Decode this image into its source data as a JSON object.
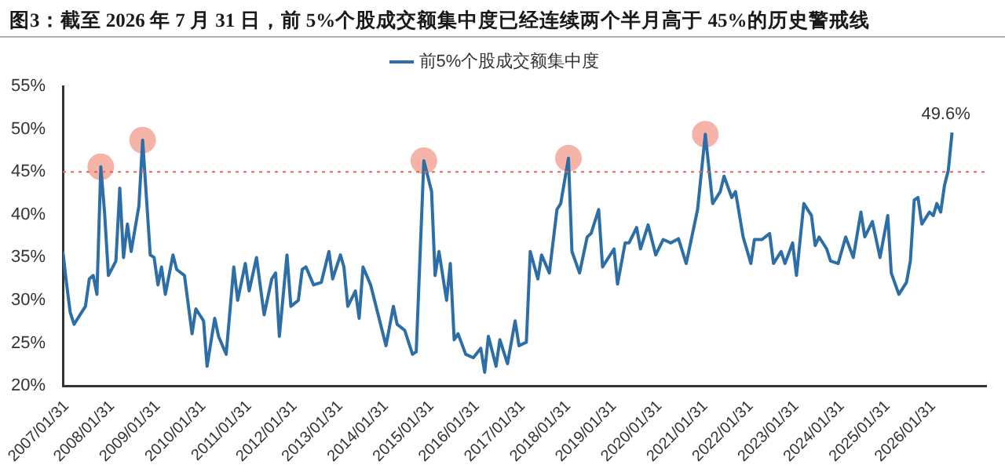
{
  "chart_data": {
    "type": "line",
    "title": "图3：截至 2026 年 7 月 31 日，前 5%个股成交额集中度已经连续两个半月高于 45%的历史警戒线",
    "xlim": [
      "2007-01-01",
      "2027-03-31"
    ],
    "xticks": [
      {
        "value": "2007-01-31",
        "label": "2007/01/31"
      },
      {
        "value": "2008-01-31",
        "label": "2008/01/31"
      },
      {
        "value": "2009-01-31",
        "label": "2009/01/31"
      },
      {
        "value": "2010-01-31",
        "label": "2010/01/31"
      },
      {
        "value": "2011-01-31",
        "label": "2011/01/31"
      },
      {
        "value": "2012-01-31",
        "label": "2012/01/31"
      },
      {
        "value": "2013-01-31",
        "label": "2013/01/31"
      },
      {
        "value": "2014-01-31",
        "label": "2014/01/31"
      },
      {
        "value": "2015-01-31",
        "label": "2015/01/31"
      },
      {
        "value": "2016-01-31",
        "label": "2016/01/31"
      },
      {
        "value": "2017-01-31",
        "label": "2017/01/31"
      },
      {
        "value": "2018-01-31",
        "label": "2018/01/31"
      },
      {
        "value": "2019-01-31",
        "label": "2019/01/31"
      },
      {
        "value": "2020-01-31",
        "label": "2020/01/31"
      },
      {
        "value": "2021-01-31",
        "label": "2021/01/31"
      },
      {
        "value": "2022-01-31",
        "label": "2022/01/31"
      },
      {
        "value": "2023-01-31",
        "label": "2023/01/31"
      },
      {
        "value": "2024-01-31",
        "label": "2024/01/31"
      },
      {
        "value": "2025-01-31",
        "label": "2025/01/31"
      },
      {
        "value": "2026-01-31",
        "label": "2026/01/31"
      }
    ],
    "ylim": [
      20,
      55
    ],
    "yticks": [
      {
        "value": 20,
        "label": "20%"
      },
      {
        "value": 25,
        "label": "25%"
      },
      {
        "value": 30,
        "label": "30%"
      },
      {
        "value": 35,
        "label": "35%"
      },
      {
        "value": 40,
        "label": "40%"
      },
      {
        "value": 45,
        "label": "45%"
      },
      {
        "value": 50,
        "label": "50%"
      },
      {
        "value": 55,
        "label": "55%"
      }
    ],
    "grid": false,
    "legend": "top",
    "marker": "none",
    "line_style": "solid",
    "ref_lines": [
      {
        "axis": "y",
        "value": 45,
        "color": "#e8615a",
        "line_style": "dotted"
      }
    ],
    "annotations": [
      {
        "text": "49.6%",
        "x": "2026-07",
        "y": 49.6
      }
    ],
    "series": [
      {
        "name": "前5%个股成交额集中度",
        "color": "#2e6ea6",
        "x": [
          "2007-01",
          "2007-02",
          "2007-03",
          "2007-04",
          "2007-05",
          "2007-07",
          "2007-08",
          "2007-09",
          "2007-10",
          "2007-11",
          "2007-12",
          "2008-01",
          "2008-03",
          "2008-04",
          "2008-05",
          "2008-06",
          "2008-07",
          "2008-09",
          "2008-10",
          "2008-12",
          "2009-01",
          "2009-02",
          "2009-03",
          "2009-04",
          "2009-06",
          "2009-07",
          "2009-09",
          "2009-11",
          "2009-12",
          "2010-02",
          "2010-03",
          "2010-05",
          "2010-06",
          "2010-08",
          "2010-10",
          "2010-11",
          "2011-01",
          "2011-02",
          "2011-04",
          "2011-06",
          "2011-08",
          "2011-09",
          "2011-10",
          "2011-12",
          "2012-01",
          "2012-03",
          "2012-04",
          "2012-05",
          "2012-07",
          "2012-09",
          "2012-11",
          "2012-12",
          "2013-02",
          "2013-03",
          "2013-04",
          "2013-06",
          "2013-07",
          "2013-08",
          "2013-10",
          "2013-11",
          "2014-02",
          "2014-04",
          "2014-05",
          "2014-07",
          "2014-09",
          "2014-10",
          "2014-12",
          "2015-02",
          "2015-03",
          "2015-04",
          "2015-06",
          "2015-07",
          "2015-08",
          "2015-09",
          "2015-11",
          "2016-01",
          "2016-03",
          "2016-04",
          "2016-05",
          "2016-07",
          "2016-08",
          "2016-10",
          "2016-12",
          "2017-01",
          "2017-03",
          "2017-04",
          "2017-06",
          "2017-07",
          "2017-09",
          "2017-11",
          "2017-12",
          "2018-02",
          "2018-03",
          "2018-05",
          "2018-07",
          "2018-08",
          "2018-10",
          "2018-11",
          "2019-02",
          "2019-03",
          "2019-05",
          "2019-06",
          "2019-08",
          "2019-09",
          "2019-11",
          "2020-01",
          "2020-03",
          "2020-05",
          "2020-07",
          "2020-09",
          "2020-12",
          "2021-02",
          "2021-04",
          "2021-06",
          "2021-07",
          "2021-09",
          "2021-10",
          "2021-12",
          "2022-02",
          "2022-03",
          "2022-05",
          "2022-07",
          "2022-08",
          "2022-10",
          "2022-11",
          "2023-01",
          "2023-02",
          "2023-04",
          "2023-06",
          "2023-07",
          "2023-08",
          "2023-10",
          "2023-11",
          "2024-01",
          "2024-03",
          "2024-05",
          "2024-07",
          "2024-08",
          "2024-10",
          "2024-12",
          "2025-02",
          "2025-03",
          "2025-05",
          "2025-07",
          "2025-08",
          "2025-09",
          "2025-10",
          "2025-11",
          "2026-01",
          "2026-02",
          "2026-03",
          "2026-04",
          "2026-05",
          "2026-06",
          "2026-07"
        ],
        "values": [
          35.7,
          31.8,
          28.6,
          27.2,
          27.9,
          29.3,
          32.5,
          32.9,
          30.7,
          45.6,
          40.3,
          32.9,
          34.6,
          43.1,
          35.0,
          38.9,
          35.7,
          41.0,
          48.7,
          35.3,
          35.0,
          31.8,
          33.9,
          30.7,
          35.3,
          33.6,
          32.9,
          26.1,
          29.0,
          27.6,
          22.3,
          27.9,
          25.8,
          23.7,
          33.9,
          30.0,
          34.3,
          31.1,
          35.0,
          28.3,
          32.5,
          33.2,
          25.8,
          35.3,
          29.3,
          30.0,
          33.6,
          33.9,
          31.8,
          32.1,
          35.7,
          32.5,
          35.3,
          33.9,
          29.3,
          31.1,
          27.9,
          33.9,
          31.8,
          30.0,
          24.7,
          29.3,
          27.2,
          26.5,
          23.7,
          24.0,
          46.3,
          42.7,
          32.9,
          35.7,
          30.0,
          34.3,
          25.4,
          26.1,
          23.7,
          23.3,
          24.4,
          21.6,
          25.8,
          22.3,
          25.4,
          22.6,
          27.6,
          24.7,
          25.1,
          35.7,
          32.5,
          35.3,
          33.2,
          40.6,
          41.3,
          46.6,
          35.7,
          33.2,
          37.4,
          37.8,
          40.6,
          33.9,
          36.0,
          31.9,
          36.7,
          36.7,
          38.5,
          36.0,
          38.8,
          35.3,
          37.1,
          36.7,
          37.2,
          34.3,
          40.6,
          49.4,
          41.3,
          42.7,
          44.5,
          42.0,
          42.7,
          37.4,
          34.3,
          37.1,
          37.1,
          37.8,
          34.3,
          35.7,
          34.3,
          36.7,
          32.9,
          41.3,
          39.9,
          36.4,
          37.4,
          36.0,
          34.6,
          34.3,
          37.4,
          35.0,
          40.3,
          37.4,
          39.2,
          35.0,
          39.9,
          33.2,
          30.7,
          32.1,
          34.6,
          41.7,
          42.0,
          38.9,
          40.3,
          39.9,
          41.3,
          40.3,
          43.4,
          45.2,
          49.6
        ]
      },
      {
        "type": "scatter",
        "color": "#f6b3a8",
        "marker": "circle",
        "x": [
          "2007-11",
          "2008-10",
          "2014-12",
          "2018-02",
          "2021-02"
        ],
        "values": [
          45.6,
          48.7,
          46.3,
          46.6,
          49.4
        ]
      }
    ]
  }
}
